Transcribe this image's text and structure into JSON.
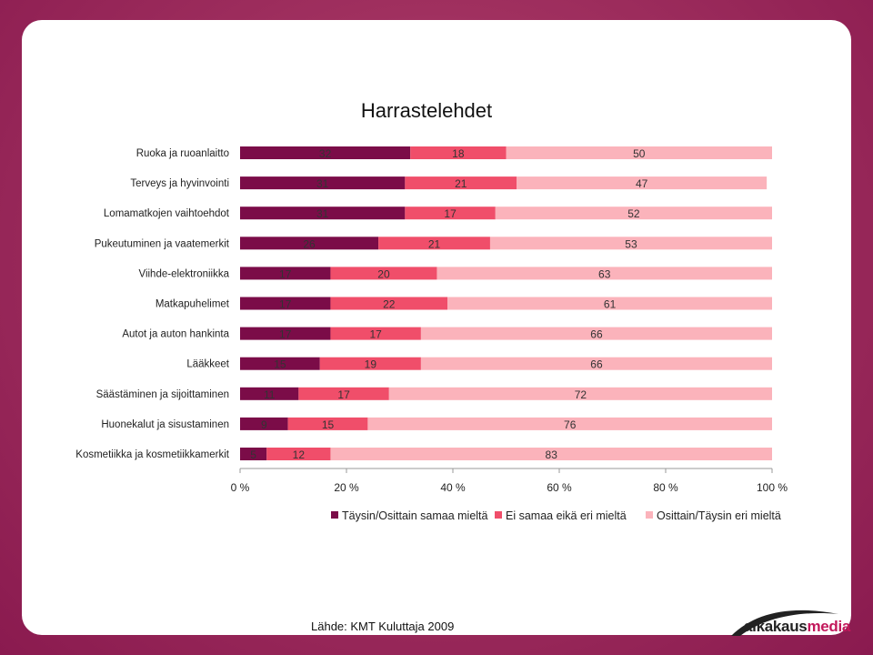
{
  "chart_data": {
    "type": "bar",
    "orientation": "horizontal",
    "stacked": "percent",
    "title": "Harrastelehdet",
    "categories": [
      "Ruoka ja ruoanlaitto",
      "Terveys ja hyvinvointi",
      "Lomamatkojen vaihtoehdot",
      "Pukeutuminen ja vaatemerkit",
      "Viihde-elektroniikka",
      "Matkapuhelimet",
      "Autot ja auton hankinta",
      "Lääkkeet",
      "Säästäminen ja sijoittaminen",
      "Huonekalut ja sisustaminen",
      "Kosmetiikka ja kosmetiikkamerkit"
    ],
    "series": [
      {
        "name": "Täysin/Osittain samaa mieltä",
        "color": "#7b0c48",
        "values": [
          32,
          31,
          31,
          26,
          17,
          17,
          17,
          15,
          11,
          9,
          5
        ]
      },
      {
        "name": "Ei samaa eikä eri mieltä",
        "color": "#f04e6a",
        "values": [
          18,
          21,
          17,
          21,
          20,
          22,
          17,
          19,
          17,
          15,
          12
        ]
      },
      {
        "name": "Osittain/Täysin eri mieltä",
        "color": "#fbb3bb",
        "values": [
          50,
          47,
          52,
          53,
          63,
          61,
          66,
          66,
          72,
          76,
          83
        ]
      }
    ],
    "x_ticks": [
      "0 %",
      "20 %",
      "40 %",
      "60 %",
      "80 %",
      "100 %"
    ],
    "xlim": [
      0,
      100
    ],
    "legend": "bottom",
    "grid": false
  },
  "source": "Lähde: KMT Kuluttaja 2009",
  "logo": {
    "part1": "aikakaus",
    "part2": "media"
  }
}
